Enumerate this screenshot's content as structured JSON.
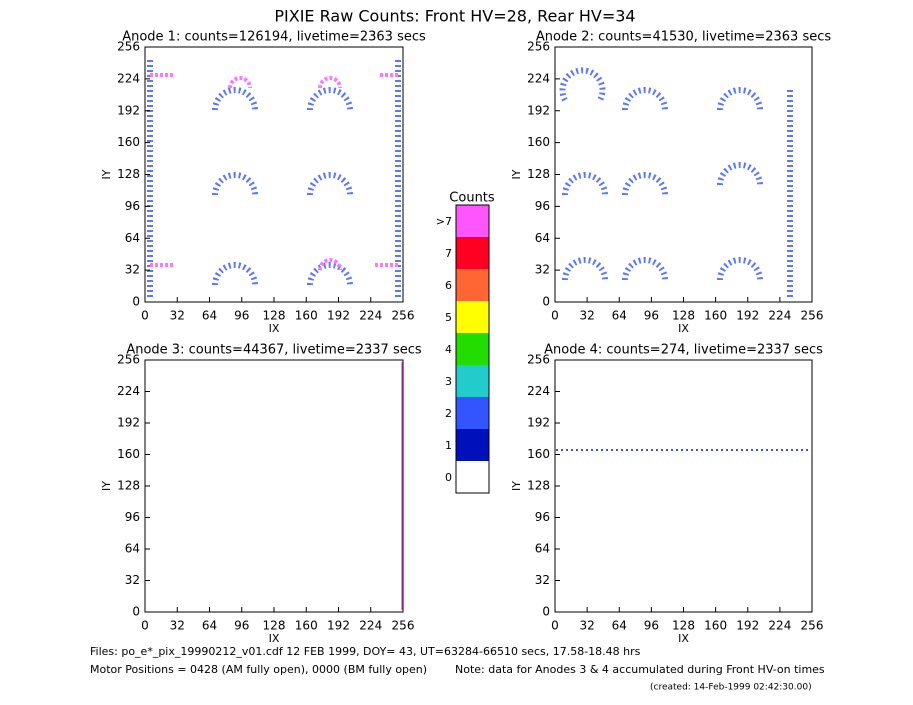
{
  "title": "PIXIE Raw Counts:  Front HV=28, Rear HV=34",
  "chart_data": [
    {
      "type": "heatmap",
      "title": "Anode 1: counts=126194, livetime=2363 secs",
      "xlabel": "IX",
      "ylabel": "IY",
      "xlim": [
        0,
        256
      ],
      "ylim": [
        0,
        256
      ],
      "xticks": [
        0,
        32,
        64,
        96,
        128,
        160,
        192,
        224,
        256
      ],
      "yticks": [
        0,
        32,
        64,
        96,
        128,
        160,
        192,
        224,
        256
      ]
    },
    {
      "type": "heatmap",
      "title": "Anode 2: counts=41530, livetime=2363 secs",
      "xlabel": "IX",
      "ylabel": "IY",
      "xlim": [
        0,
        256
      ],
      "ylim": [
        0,
        256
      ],
      "xticks": [
        0,
        32,
        64,
        96,
        128,
        160,
        192,
        224,
        256
      ],
      "yticks": [
        0,
        32,
        64,
        96,
        128,
        160,
        192,
        224,
        256
      ]
    },
    {
      "type": "heatmap",
      "title": "Anode 3: counts=44367, livetime=2337 secs",
      "xlabel": "IX",
      "ylabel": "IY",
      "xlim": [
        0,
        256
      ],
      "ylim": [
        0,
        256
      ],
      "xticks": [
        0,
        32,
        64,
        96,
        128,
        160,
        192,
        224,
        256
      ],
      "yticks": [
        0,
        32,
        64,
        96,
        128,
        160,
        192,
        224,
        256
      ]
    },
    {
      "type": "heatmap",
      "title": "Anode 4: counts=274, livetime=2337 secs",
      "xlabel": "IX",
      "ylabel": "IY",
      "xlim": [
        0,
        256
      ],
      "ylim": [
        0,
        256
      ],
      "xticks": [
        0,
        32,
        64,
        96,
        128,
        160,
        192,
        224,
        256
      ],
      "yticks": [
        0,
        32,
        64,
        96,
        128,
        160,
        192,
        224,
        256
      ]
    }
  ],
  "colorbar": {
    "title": "Counts",
    "levels": [
      {
        "label": ">7",
        "color": "#ff55ff"
      },
      {
        "label": "7",
        "color": "#ff0022"
      },
      {
        "label": "6",
        "color": "#ff6633"
      },
      {
        "label": "5",
        "color": "#ffff00"
      },
      {
        "label": "4",
        "color": "#22dd00"
      },
      {
        "label": "3",
        "color": "#22cccc"
      },
      {
        "label": "2",
        "color": "#3355ff"
      },
      {
        "label": "1",
        "color": "#0011bb"
      },
      {
        "label": "0",
        "color": "#ffffff"
      }
    ]
  },
  "footer": {
    "files": "Files: po_e*_pix_19990212_v01.cdf    12 FEB 1999, DOY= 43, UT=63284-66510 secs, 17.58-18.48 hrs",
    "motor": "Motor Positions = 0428 (AM fully open), 0000 (BM fully open)",
    "note": "Note: data for Anodes 3 & 4 accumulated during Front HV-on times",
    "created": "(created: 14-Feb-1999 02:42:30.00)"
  }
}
